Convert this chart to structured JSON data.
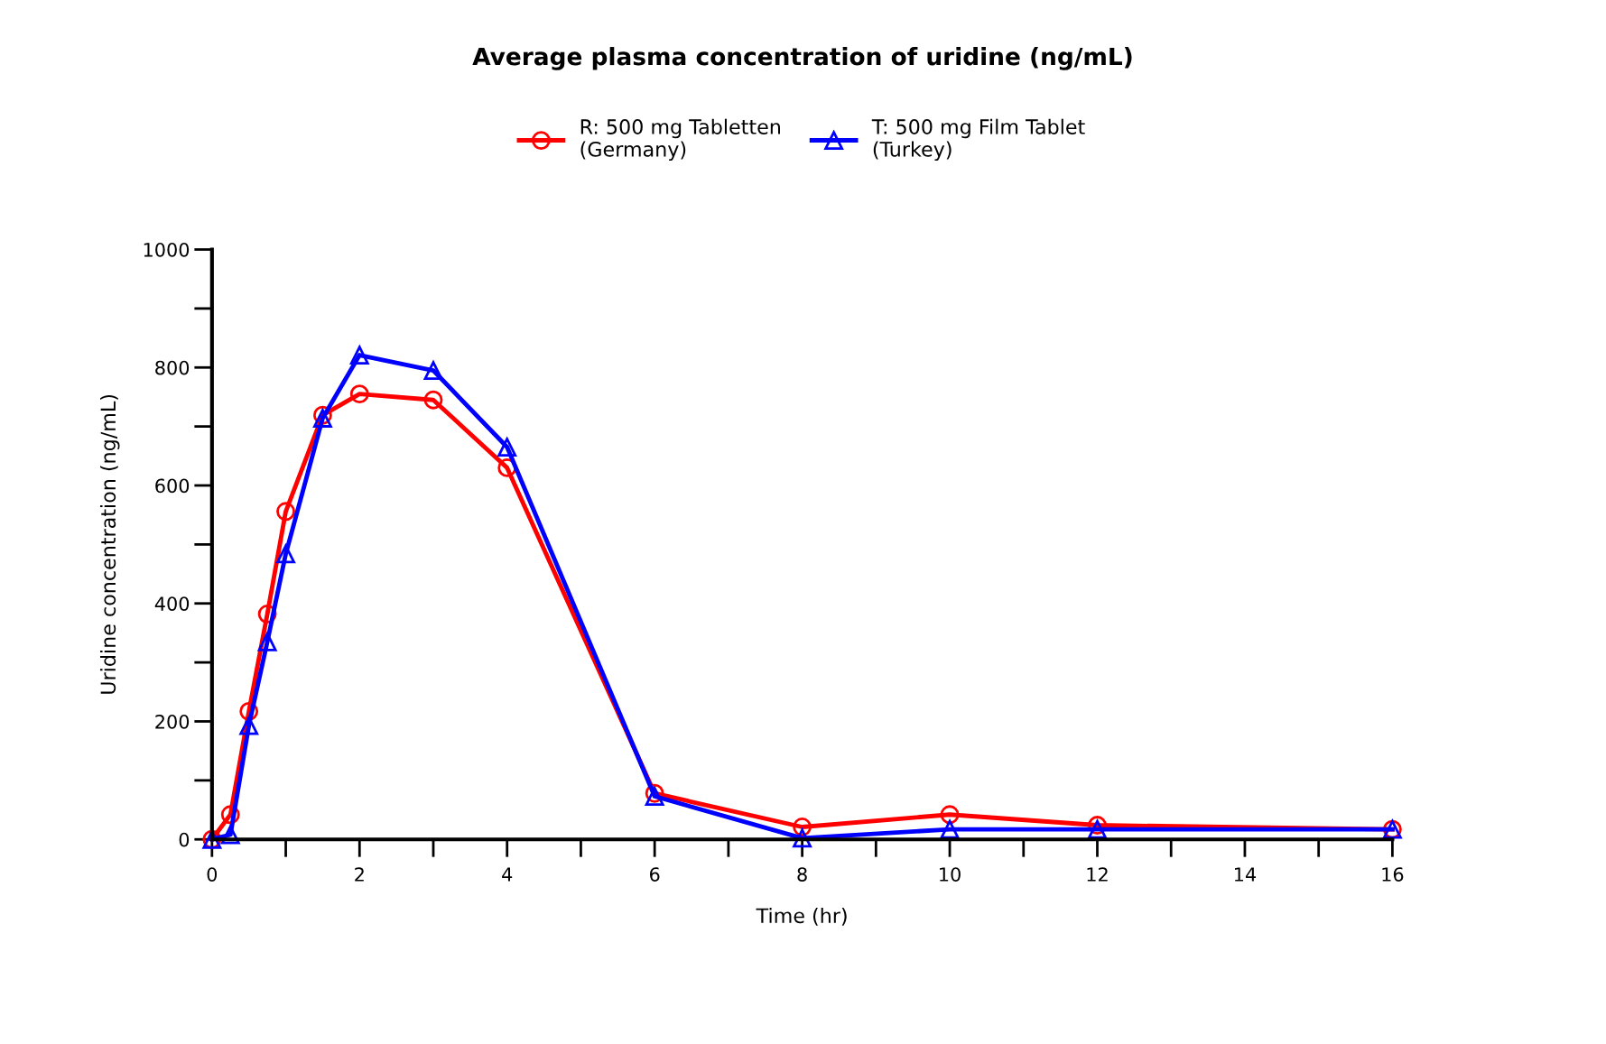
{
  "chart_data": {
    "type": "line",
    "title": "Average plasma concentration of uridine (ng/mL)",
    "xlabel": "Time (hr)",
    "ylabel": "Uridine concentration (ng/mL)",
    "x": [
      0,
      0.25,
      0.5,
      0.75,
      1,
      1.5,
      2,
      3,
      4,
      6,
      8,
      10,
      12,
      16
    ],
    "series": [
      {
        "name": "R: 500 mg Tabletten\n(Germany)",
        "color": "#ff0000",
        "marker": "circle",
        "values": [
          0,
          42,
          217,
          382,
          556,
          719,
          755,
          745,
          630,
          78,
          21,
          42,
          24,
          17
        ]
      },
      {
        "name": "T: 500 mg Film Tablet\n(Turkey)",
        "color": "#0000ff",
        "marker": "triangle",
        "values": [
          0,
          8,
          193,
          335,
          484,
          714,
          821,
          795,
          665,
          73,
          2,
          17,
          17,
          17
        ]
      }
    ],
    "xlim": [
      0,
      16
    ],
    "xticks": [
      0,
      2,
      4,
      6,
      8,
      10,
      12,
      14,
      16
    ],
    "ylim": [
      0,
      1000
    ],
    "yticks": [
      0,
      200,
      400,
      600,
      800,
      1000
    ],
    "grid": false,
    "legend": "top",
    "line_style": "solid"
  }
}
